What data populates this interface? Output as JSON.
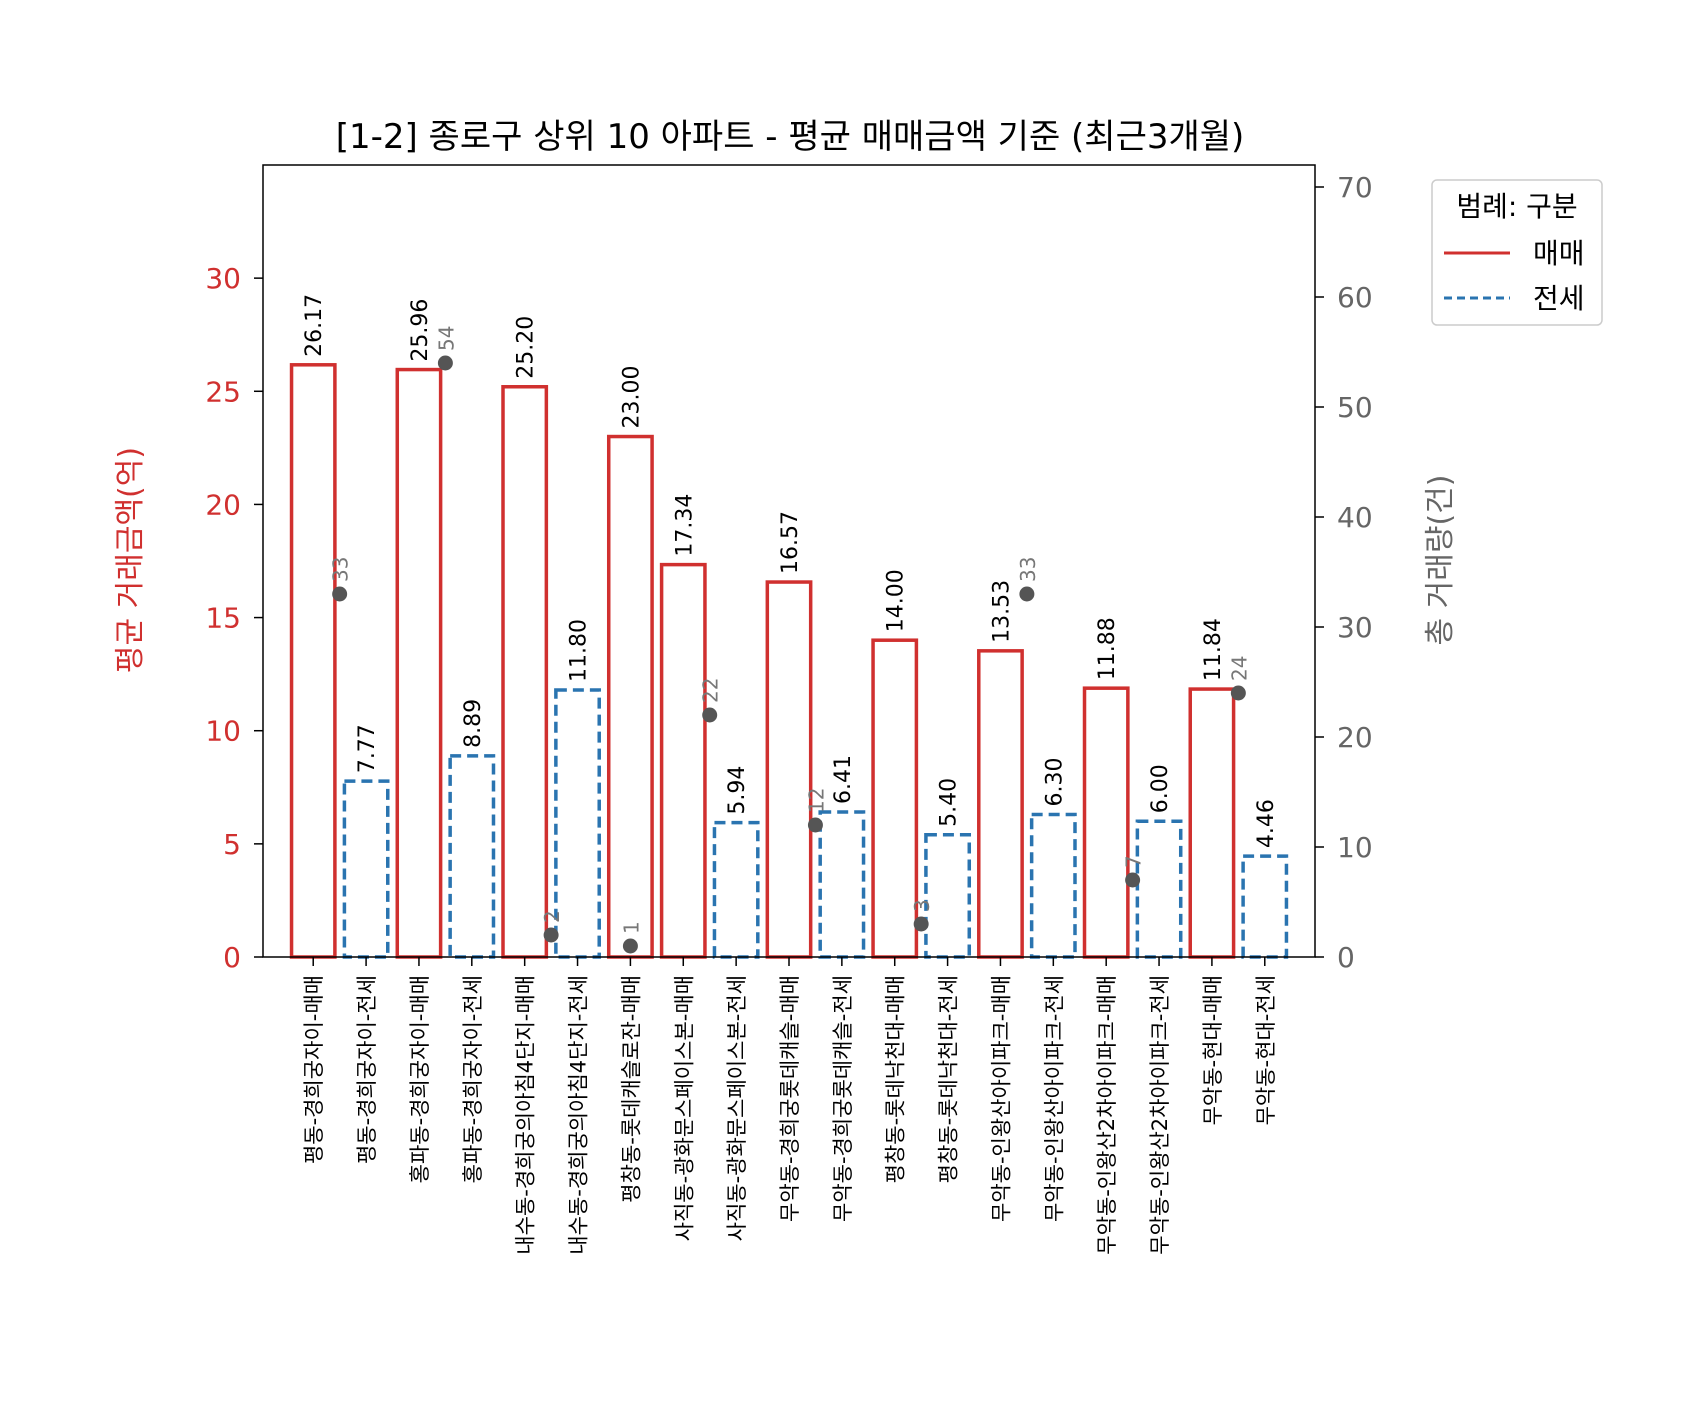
{
  "chart_data": {
    "type": "bar",
    "title": "[1-2] 종로구 상위 10 아파트 - 평균 매매금액 기준 (최근3개월)",
    "ylabel_left": "평균 거래금액(억)",
    "ylabel_right": "총 거래량(건)",
    "ylim_left": [
      0,
      35
    ],
    "ylim_right": [
      0,
      72
    ],
    "yticks_left": [
      0,
      5,
      10,
      15,
      20,
      25,
      30
    ],
    "yticks_right": [
      0,
      10,
      20,
      30,
      40,
      50,
      60,
      70
    ],
    "legend": {
      "title": "범례: 구분",
      "placement": "outside-right-top",
      "entries": [
        {
          "label": "매매",
          "color": "#d0302f",
          "style": "solid"
        },
        {
          "label": "전세",
          "color": "#2a74b0",
          "style": "dashed"
        }
      ]
    },
    "categories": [
      "평동-경희궁자이-매매",
      "평동-경희궁자이-전세",
      "홍파동-경희궁자이-매매",
      "홍파동-경희궁자이-전세",
      "내수동-경희궁의아침4단지-매매",
      "내수동-경희궁의아침4단지-전세",
      "평창동-롯데캐슬로잔-매매",
      "사직동-광화문스페이스본-매매",
      "사직동-광화문스페이스본-전세",
      "무악동-경희궁롯데캐슬-매매",
      "무악동-경희궁롯데캐슬-전세",
      "평창동-롯데낙천대-매매",
      "평창동-롯데낙천대-전세",
      "무악동-인왕산아이파크-매매",
      "무악동-인왕산아이파크-전세",
      "무악동-인왕산2차아이파크-매매",
      "무악동-인왕산2차아이파크-전세",
      "무악동-현대-매매",
      "무악동-현대-전세"
    ],
    "kinds": [
      "매매",
      "전세",
      "매매",
      "전세",
      "매매",
      "전세",
      "매매",
      "매매",
      "전세",
      "매매",
      "전세",
      "매매",
      "전세",
      "매매",
      "전세",
      "매매",
      "전세",
      "매매",
      "전세"
    ],
    "values": [
      26.17,
      7.77,
      25.96,
      8.89,
      25.2,
      11.8,
      23.0,
      17.34,
      5.94,
      16.57,
      6.41,
      14.0,
      5.4,
      13.53,
      6.3,
      11.88,
      6.0,
      11.84,
      4.46
    ],
    "value_labels": [
      "26.17",
      "7.77",
      "25.96",
      "8.89",
      "25.20",
      "11.80",
      "23.00",
      "17.34",
      "5.94",
      "16.57",
      "6.41",
      "14.00",
      "5.40",
      "13.53",
      "6.30",
      "11.88",
      "6.00",
      "11.84",
      "4.46"
    ],
    "counts": [
      {
        "group": "평동-경희궁자이",
        "value": 33,
        "label": "33"
      },
      {
        "group": "홍파동-경희궁자이",
        "value": 54,
        "label": "54"
      },
      {
        "group": "내수동-경희궁의아침4단지",
        "value": 2,
        "label": "2"
      },
      {
        "group": "평창동-롯데캐슬로잔",
        "value": 1,
        "label": "1"
      },
      {
        "group": "사직동-광화문스페이스본",
        "value": 22,
        "label": "22"
      },
      {
        "group": "무악동-경희궁롯데캐슬",
        "value": 12,
        "label": "12"
      },
      {
        "group": "평창동-롯데낙천대",
        "value": 3,
        "label": "3"
      },
      {
        "group": "무악동-인왕산아이파크",
        "value": 33,
        "label": "33"
      },
      {
        "group": "무악동-인왕산2차아이파크",
        "value": 7,
        "label": "7"
      },
      {
        "group": "무악동-현대",
        "value": 24,
        "label": "24"
      }
    ]
  }
}
